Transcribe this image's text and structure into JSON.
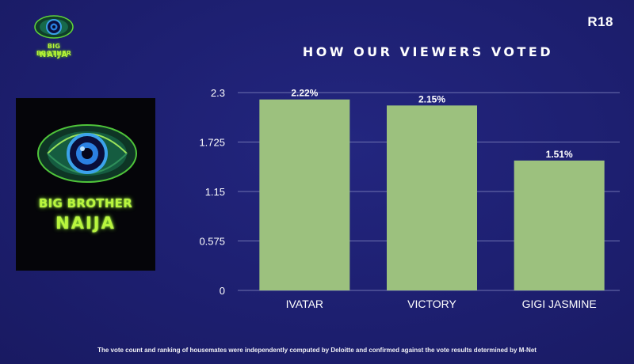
{
  "header": {
    "rating": "R18",
    "logo_line1": "BIG BROTHER",
    "logo_line2": "NAIJA"
  },
  "logo_panel": {
    "line1": "BIG BROTHER",
    "line2": "NAIJA"
  },
  "colors": {
    "background": "#1c1e6e",
    "bar": "#9cc17e",
    "logo_green": "#b9f53e"
  },
  "chart_data": {
    "type": "bar",
    "title": "HOW OUR VIEWERS VOTED",
    "categories": [
      "IVATAR",
      "VICTORY",
      "GIGI JASMINE"
    ],
    "values": [
      2.22,
      2.15,
      1.51
    ],
    "data_labels": [
      "2.22%",
      "2.15%",
      "1.51%"
    ],
    "yticks": [
      "0",
      "0.575",
      "1.15",
      "1.725",
      "2.3"
    ],
    "ylim": [
      0,
      2.3
    ],
    "grid": true,
    "legend": "none"
  },
  "footer": {
    "note": "The vote count and ranking of housemates were independently computed by Deloitte and confirmed against the vote results determined by M-Net"
  }
}
